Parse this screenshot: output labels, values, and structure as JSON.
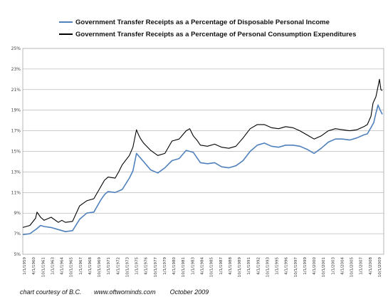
{
  "chart_data": {
    "type": "line",
    "title": "",
    "xlabel": "",
    "ylabel": "",
    "ylim": [
      5,
      25
    ],
    "yticks": [
      "5%",
      "7%",
      "9%",
      "11%",
      "13%",
      "15%",
      "17%",
      "19%",
      "21%",
      "23%",
      "25%"
    ],
    "grid": true,
    "legend": "top",
    "x_tick_labels": [
      "1/1/1959",
      "4/1/1960",
      "10/1/1961",
      "1/1/1963",
      "4/1/1964",
      "10/1/1965",
      "1/1/1967",
      "4/1/1968",
      "10/1/1969",
      "1/1/1971",
      "4/1/1972",
      "10/1/1973",
      "1/1/1975",
      "4/1/1976",
      "10/1/1977",
      "1/1/1979",
      "4/1/1980",
      "10/1/1981",
      "1/1/1983",
      "4/1/1984",
      "10/1/1985",
      "1/1/1987",
      "4/1/1988",
      "10/1/1989",
      "1/1/1991",
      "4/1/1992",
      "10/1/1993",
      "1/1/1995",
      "4/1/1996",
      "10/1/1997",
      "1/1/1999",
      "4/1/2000",
      "10/1/2001",
      "1/1/2003",
      "4/1/2004",
      "10/1/2005",
      "1/1/2007",
      "4/1/2008",
      "10/1/2009"
    ],
    "series": [
      {
        "name": "Government Transfer Receipts as a Percentage of Disposable Personal Income",
        "color": "#4f81bd",
        "x": [
          1959.0,
          1960.0,
          1961.0,
          1961.5,
          1962.0,
          1963.0,
          1964.0,
          1965.0,
          1966.0,
          1967.0,
          1968.0,
          1969.0,
          1970.0,
          1970.5,
          1971.0,
          1972.0,
          1973.0,
          1974.0,
          1974.5,
          1975.0,
          1975.5,
          1976.0,
          1977.0,
          1978.0,
          1979.0,
          1980.0,
          1981.0,
          1982.0,
          1983.0,
          1983.5,
          1984.0,
          1985.0,
          1986.0,
          1987.0,
          1988.0,
          1989.0,
          1990.0,
          1991.0,
          1992.0,
          1993.0,
          1994.0,
          1995.0,
          1996.0,
          1997.0,
          1998.0,
          1999.0,
          2000.0,
          2001.0,
          2002.0,
          2003.0,
          2004.0,
          2005.0,
          2006.0,
          2007.0,
          2007.5,
          2008.0,
          2008.4,
          2008.7,
          2009.0,
          2009.3,
          2009.6
        ],
        "values": [
          6.9,
          7.0,
          7.5,
          7.8,
          7.7,
          7.6,
          7.4,
          7.2,
          7.3,
          8.4,
          9.0,
          9.1,
          10.3,
          10.8,
          11.1,
          11.0,
          11.3,
          12.4,
          13.1,
          14.8,
          14.4,
          14.0,
          13.2,
          12.9,
          13.4,
          14.1,
          14.3,
          15.1,
          14.9,
          14.4,
          13.9,
          13.8,
          13.9,
          13.5,
          13.4,
          13.6,
          14.1,
          15.0,
          15.6,
          15.8,
          15.5,
          15.4,
          15.6,
          15.6,
          15.5,
          15.2,
          14.8,
          15.3,
          15.9,
          16.2,
          16.2,
          16.1,
          16.3,
          16.6,
          16.7,
          17.3,
          17.8,
          18.7,
          19.5,
          19.0,
          18.6
        ]
      },
      {
        "name": "Government Transfer Receipts as a Percentage of Personal Consumption Expenditures",
        "color": "#000000",
        "x": [
          1959.0,
          1960.0,
          1960.8,
          1961.0,
          1961.5,
          1962.0,
          1963.0,
          1964.0,
          1964.5,
          1965.0,
          1966.0,
          1967.0,
          1968.0,
          1969.0,
          1970.0,
          1970.5,
          1971.0,
          1972.0,
          1972.5,
          1973.0,
          1974.0,
          1974.5,
          1975.0,
          1975.3,
          1975.6,
          1976.0,
          1977.0,
          1978.0,
          1979.0,
          1980.0,
          1981.0,
          1982.0,
          1982.5,
          1983.0,
          1983.5,
          1984.0,
          1985.0,
          1986.0,
          1987.0,
          1988.0,
          1989.0,
          1990.0,
          1991.0,
          1992.0,
          1993.0,
          1994.0,
          1995.0,
          1996.0,
          1997.0,
          1998.0,
          1999.0,
          2000.0,
          2001.0,
          2002.0,
          2003.0,
          2004.0,
          2005.0,
          2006.0,
          2007.0,
          2007.5,
          2008.0,
          2008.3,
          2008.7,
          2009.0,
          2009.2,
          2009.4,
          2009.6
        ],
        "values": [
          7.6,
          7.8,
          8.5,
          9.1,
          8.6,
          8.3,
          8.6,
          8.1,
          8.3,
          8.1,
          8.2,
          9.7,
          10.2,
          10.4,
          11.6,
          12.2,
          12.5,
          12.4,
          13.0,
          13.7,
          14.6,
          15.4,
          17.1,
          16.6,
          16.2,
          15.8,
          15.1,
          14.6,
          14.8,
          16.0,
          16.2,
          17.0,
          17.2,
          16.5,
          16.1,
          15.6,
          15.5,
          15.7,
          15.4,
          15.3,
          15.5,
          16.3,
          17.2,
          17.6,
          17.6,
          17.3,
          17.2,
          17.4,
          17.3,
          17.0,
          16.6,
          16.2,
          16.5,
          17.0,
          17.2,
          17.1,
          17.0,
          17.1,
          17.4,
          17.6,
          18.4,
          19.7,
          20.3,
          21.3,
          22.0,
          21.0,
          20.9
        ]
      }
    ]
  },
  "credit": "chart courtesy of B.C.       www.oftwominds.com        October 2009"
}
